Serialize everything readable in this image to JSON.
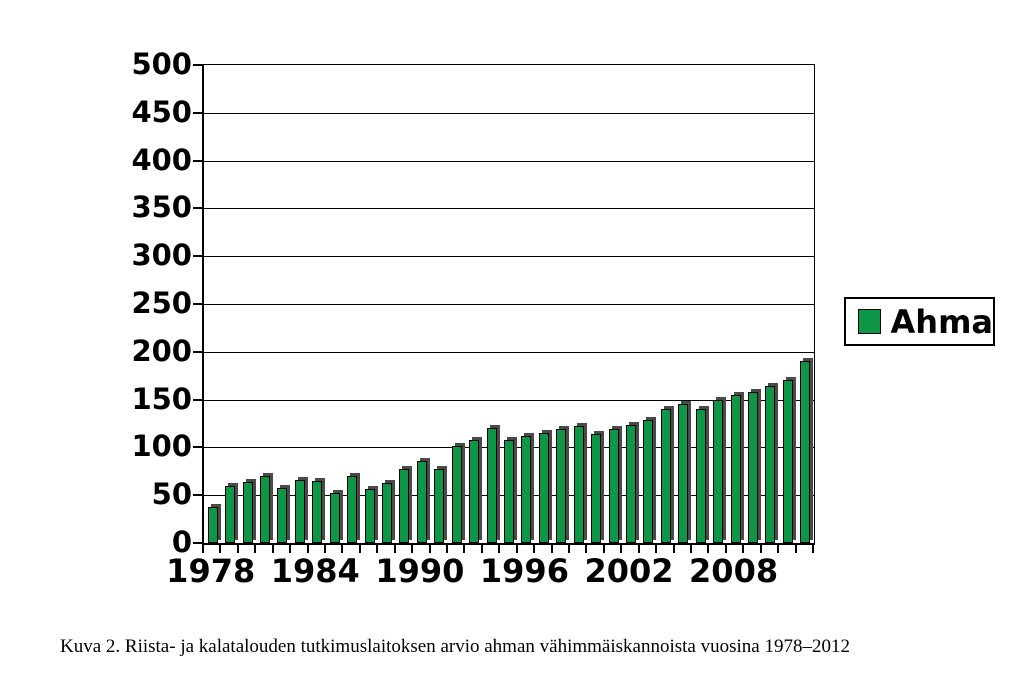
{
  "figure": {
    "caption": "Kuva 2. Riista- ja kalatalouden tutkimuslaitoksen arvio ahman vähimmäiskannoista vuosina 1978–2012"
  },
  "legend": {
    "label": "Ahma",
    "swatch_color": "#0d9646"
  },
  "chart_data": {
    "type": "bar",
    "title": "",
    "xlabel": "",
    "ylabel": "",
    "categories": [
      1978,
      1979,
      1980,
      1981,
      1982,
      1983,
      1984,
      1985,
      1986,
      1987,
      1988,
      1989,
      1990,
      1991,
      1992,
      1993,
      1994,
      1995,
      1996,
      1997,
      1998,
      1999,
      2000,
      2001,
      2002,
      2003,
      2004,
      2005,
      2006,
      2007,
      2008,
      2009,
      2010,
      2011,
      2012
    ],
    "series": [
      {
        "name": "Ahma",
        "values": [
          38,
          60,
          64,
          70,
          58,
          66,
          65,
          52,
          70,
          57,
          63,
          77,
          86,
          77,
          102,
          108,
          120,
          108,
          112,
          115,
          119,
          122,
          114,
          119,
          123,
          129,
          140,
          145,
          140,
          150,
          155,
          158,
          164,
          170,
          190
        ]
      }
    ],
    "ylim": [
      0,
      500
    ],
    "ytick_step": 50,
    "ytick_labels": [
      "0",
      "50",
      "100",
      "150",
      "200",
      "250",
      "300",
      "350",
      "400",
      "450",
      "500"
    ],
    "xtick_labels_shown": [
      "1978",
      "1984",
      "1990",
      "1996",
      "2002",
      "2008"
    ],
    "xtick_label_every": 6,
    "grid": "horizontal",
    "legend_position": "right",
    "bar_color": "#0d9646",
    "bar_border_color": "#000000",
    "bar_shadow_color": "#4a4a4a"
  }
}
